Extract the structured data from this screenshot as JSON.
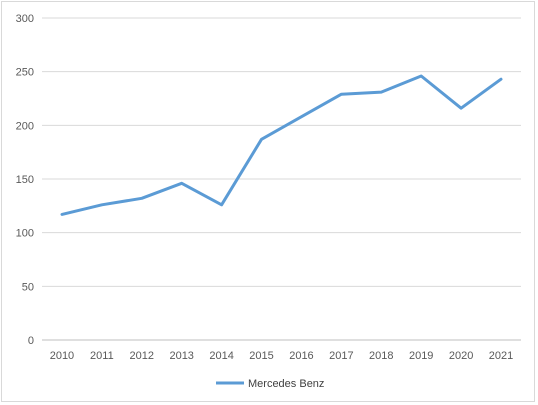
{
  "chart_data": {
    "type": "line",
    "categories": [
      "2010",
      "2011",
      "2012",
      "2013",
      "2014",
      "2015",
      "2016",
      "2017",
      "2018",
      "2019",
      "2020",
      "2021"
    ],
    "series": [
      {
        "name": "Mercedes Benz",
        "color": "#5b9bd5",
        "values": [
          117,
          126,
          132,
          146,
          126,
          187,
          208,
          229,
          231,
          246,
          216,
          243
        ]
      }
    ],
    "ylim": [
      0,
      300
    ],
    "yticks": [
      0,
      50,
      100,
      150,
      200,
      250,
      300
    ],
    "grid": true,
    "legend_position": "bottom",
    "title": "",
    "xlabel": "",
    "ylabel": ""
  }
}
